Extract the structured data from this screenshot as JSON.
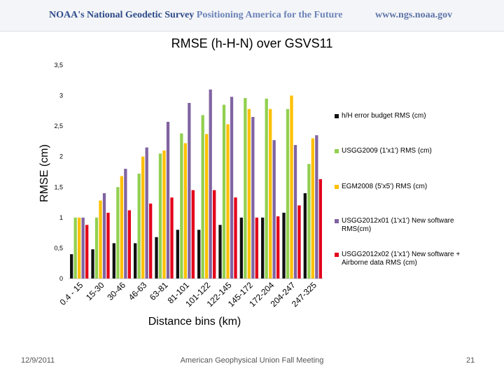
{
  "header": {
    "left_text": "NOAA's National Geodetic Survey",
    "left_tagline": "Positioning America for the Future",
    "right_text": "www.ngs.noaa.gov"
  },
  "chart_data": {
    "type": "bar",
    "title": "RMSE (h-H-N) over GSVS11",
    "xlabel": "Distance bins (km)",
    "ylabel": "RMSE (cm)",
    "ylim": [
      0,
      3.5
    ],
    "yticks": [
      "0",
      "0,5",
      "1",
      "1,5",
      "2",
      "2,5",
      "3",
      "3,5"
    ],
    "categories": [
      "0.4 - 15",
      "15-30",
      "30-46",
      "46-63",
      "63-81",
      "81-101",
      "101-122",
      "122-145",
      "145-172",
      "172-204",
      "204-247",
      "247-325"
    ],
    "series": [
      {
        "name": "h/H error budget RMS (cm)",
        "color": "#111111",
        "values": [
          0.4,
          0.48,
          0.58,
          0.58,
          0.68,
          0.8,
          0.8,
          0.88,
          1.0,
          1.0,
          1.08,
          1.4
        ]
      },
      {
        "name": "USGG2009 (1'x1') RMS (cm)",
        "color": "#92d050",
        "values": [
          1.0,
          1.0,
          1.5,
          1.72,
          2.05,
          2.38,
          2.68,
          2.85,
          2.96,
          2.95,
          2.78,
          1.88
        ]
      },
      {
        "name": "EGM2008 (5'x5') RMS (cm)",
        "color": "#ffc000",
        "values": [
          1.0,
          1.28,
          1.68,
          2.0,
          2.1,
          2.22,
          2.37,
          2.53,
          2.78,
          2.78,
          3.0,
          2.3
        ]
      },
      {
        "name": "USGG2012x01 (1'x1') New software RMS(cm)",
        "color": "#8064a2",
        "values": [
          1.0,
          1.4,
          1.8,
          2.15,
          2.57,
          2.88,
          3.1,
          2.98,
          2.65,
          2.27,
          2.19,
          2.35
        ]
      },
      {
        "name": "USGG2012x02 (1'x1') New software + Airborne data RMS (cm)",
        "color": "#e3001b",
        "values": [
          0.88,
          1.08,
          1.12,
          1.23,
          1.33,
          1.45,
          1.45,
          1.33,
          1.0,
          1.02,
          1.2,
          1.63
        ]
      }
    ]
  },
  "footer": {
    "date": "12/9/2011",
    "meeting": "American Geophysical Union Fall Meeting",
    "page": "21"
  }
}
